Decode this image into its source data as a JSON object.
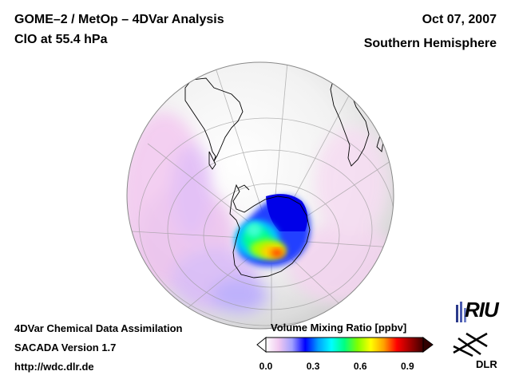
{
  "header": {
    "title_line1": "GOME–2 / MetOp – 4DVar Analysis",
    "title_line2": "ClO at 55.4 hPa",
    "date": "Oct 07, 2007",
    "region": "Southern Hemisphere"
  },
  "footer": {
    "line1": "4DVar Chemical Data Assimilation",
    "line2": "SACADA Version 1.7",
    "line3": "http://wdc.dlr.de"
  },
  "colorbar": {
    "title": "Volume Mixing Ratio [ppbv]",
    "ticks": [
      "0.0",
      "0.3",
      "0.6",
      "0.9"
    ],
    "tick_values": [
      0.0,
      0.3,
      0.6,
      0.9
    ],
    "range": [
      0.0,
      1.0
    ],
    "colors": [
      "#ffffff",
      "#f0c8f0",
      "#a0a0ff",
      "#0000ff",
      "#00a0ff",
      "#00ffff",
      "#00ff80",
      "#80ff00",
      "#ffff00",
      "#ffa000",
      "#ff0000",
      "#a00000",
      "#400000"
    ]
  },
  "logos": {
    "riu": "RIU",
    "dlr": "DLR"
  },
  "icons": {
    "riu_logo": "riu-logo-icon",
    "dlr_logo": "dlr-logo-icon"
  }
}
